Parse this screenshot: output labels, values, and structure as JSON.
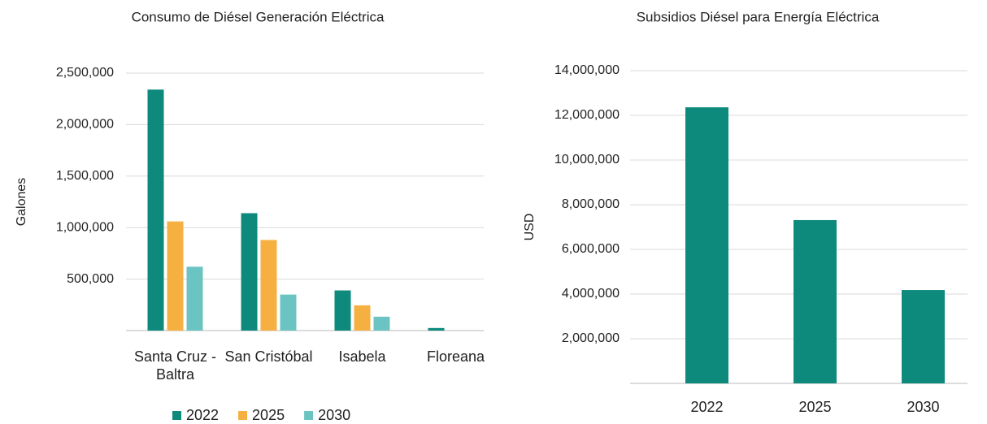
{
  "chart_data": [
    {
      "type": "bar",
      "title": "Consumo de Diésel Generación Eléctrica",
      "y_label": "Galones",
      "categories": [
        "Santa Cruz - Baltra",
        "San Cristóbal",
        "Isabela",
        "Floreana"
      ],
      "series": [
        {
          "name": "2022",
          "color": "#0e8a7d",
          "values": [
            2340000,
            1140000,
            390000,
            25000
          ]
        },
        {
          "name": "2025",
          "color": "#f6b042",
          "values": [
            1060000,
            880000,
            245000,
            null
          ]
        },
        {
          "name": "2030",
          "color": "#6cc4c2",
          "values": [
            620000,
            350000,
            135000,
            null
          ]
        }
      ],
      "ylim": [
        0,
        2500000
      ],
      "yticks": [
        {
          "value": 500000,
          "label": "500,000"
        },
        {
          "value": 1000000,
          "label": "1,000,000"
        },
        {
          "value": 1500000,
          "label": "1,500,000"
        },
        {
          "value": 2000000,
          "label": "2,000,000"
        },
        {
          "value": 2500000,
          "label": "2,500,000"
        }
      ],
      "grid": true,
      "legend": "bottom"
    },
    {
      "type": "bar",
      "title": "Subsidios Diésel para Energía Eléctrica",
      "y_label": "USD",
      "categories": [
        "2022",
        "2025",
        "2030"
      ],
      "values": [
        12360000,
        7310000,
        4180000
      ],
      "color": "#0e8a7d",
      "ylim": [
        0,
        14000000
      ],
      "yticks": [
        {
          "value": 2000000,
          "label": "2,000,000"
        },
        {
          "value": 4000000,
          "label": "4,000,000"
        },
        {
          "value": 6000000,
          "label": "6,000,000"
        },
        {
          "value": 8000000,
          "label": "8,000,000"
        },
        {
          "value": 10000000,
          "label": "10,000,000"
        },
        {
          "value": 12000000,
          "label": "12,000,000"
        },
        {
          "value": 14000000,
          "label": "14,000,000"
        }
      ],
      "grid": true
    }
  ]
}
